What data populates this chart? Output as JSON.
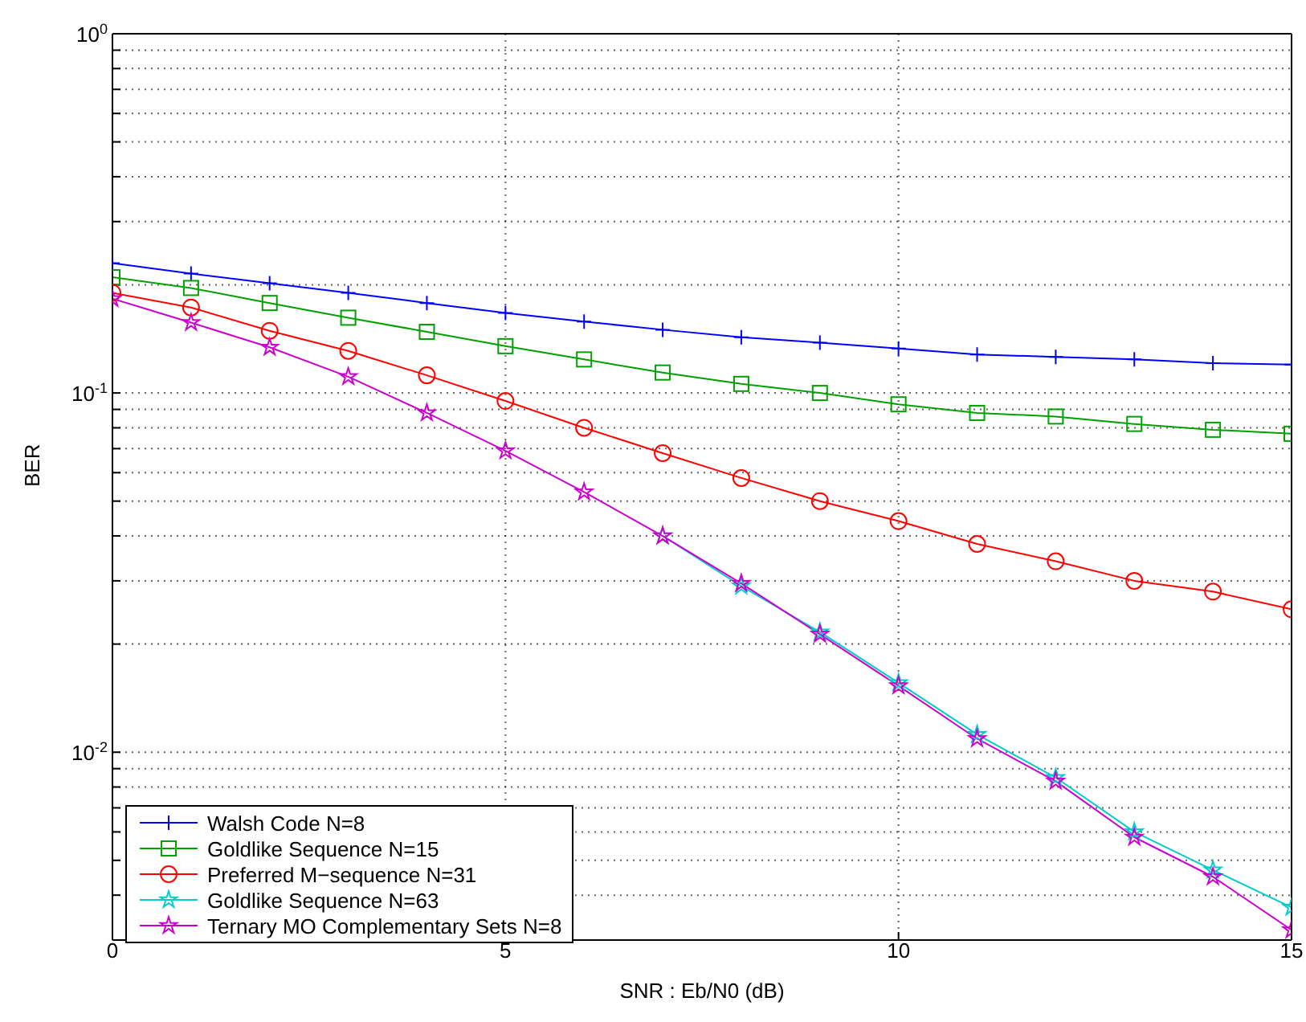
{
  "chart_data": {
    "type": "line",
    "xlabel": "SNR : Eb/N0 (dB)",
    "ylabel": "BER",
    "log": "y",
    "grid": true,
    "line_style": "solid",
    "legend": "bottom left",
    "x": [
      0,
      1,
      2,
      3,
      4,
      5,
      6,
      7,
      8,
      9,
      10,
      11,
      12,
      13,
      14,
      15
    ],
    "xlim": [
      0,
      15
    ],
    "xticks": [
      0,
      5,
      10,
      15
    ],
    "ylim": [
      0.003,
      1
    ],
    "yticks": [
      {
        "value": 0.003,
        "label": null
      },
      {
        "value": 0.004,
        "label": null
      },
      {
        "value": 0.005,
        "label": null
      },
      {
        "value": 0.006,
        "label": null
      },
      {
        "value": 0.007,
        "label": null
      },
      {
        "value": 0.008,
        "label": null
      },
      {
        "value": 0.009,
        "label": null
      },
      {
        "value": 0.01,
        "label": "10$^{-2}$"
      },
      {
        "value": 0.02,
        "label": null
      },
      {
        "value": 0.03,
        "label": null
      },
      {
        "value": 0.04,
        "label": null
      },
      {
        "value": 0.05,
        "label": null
      },
      {
        "value": 0.06,
        "label": null
      },
      {
        "value": 0.07,
        "label": null
      },
      {
        "value": 0.08,
        "label": null
      },
      {
        "value": 0.09,
        "label": null
      },
      {
        "value": 0.1,
        "label": "10$^{-1}$"
      },
      {
        "value": 0.2,
        "label": null
      },
      {
        "value": 0.3,
        "label": null
      },
      {
        "value": 0.4,
        "label": null
      },
      {
        "value": 0.5,
        "label": null
      },
      {
        "value": 0.6,
        "label": null
      },
      {
        "value": 0.7,
        "label": null
      },
      {
        "value": 0.8,
        "label": null
      },
      {
        "value": 0.9,
        "label": null
      },
      {
        "value": 1,
        "label": "10$^{0}$"
      }
    ],
    "series": [
      {
        "name": "Walsh Code N=8",
        "color": "#0000ff",
        "marker": "cross",
        "values": [
          0.23,
          0.215,
          0.202,
          0.19,
          0.178,
          0.167,
          0.158,
          0.15,
          0.143,
          0.138,
          0.133,
          0.128,
          0.126,
          0.124,
          0.121,
          0.12
        ]
      },
      {
        "name": "Goldlike Sequence N=15",
        "color": "#00a000",
        "marker": "square",
        "values": [
          0.21,
          0.196,
          0.178,
          0.162,
          0.148,
          0.135,
          0.124,
          0.114,
          0.106,
          0.1,
          0.093,
          0.088,
          0.086,
          0.082,
          0.079,
          0.077
        ]
      },
      {
        "name": "Preferred M−sequence N=31",
        "color": "#ff0000",
        "marker": "circle",
        "values": [
          0.19,
          0.173,
          0.149,
          0.131,
          0.112,
          0.095,
          0.08,
          0.068,
          0.058,
          0.05,
          0.044,
          0.038,
          0.034,
          0.03,
          0.028,
          0.025
        ]
      },
      {
        "name": "Goldlike Sequence N=63",
        "color": "#00cccc",
        "marker": "star",
        "values": [
          null,
          null,
          null,
          null,
          null,
          null,
          null,
          0.04,
          0.029,
          0.0216,
          0.0156,
          0.0112,
          0.0085,
          0.006,
          0.0047,
          0.0037
        ]
      },
      {
        "name": "Ternary MO Complementary Sets N=8",
        "color": "#cc00cc",
        "marker": "star",
        "values": [
          0.183,
          0.157,
          0.134,
          0.111,
          0.088,
          0.069,
          0.053,
          0.04,
          0.0295,
          0.0213,
          0.0153,
          0.0109,
          0.0083,
          0.0058,
          0.0045,
          0.0032
        ]
      }
    ]
  }
}
